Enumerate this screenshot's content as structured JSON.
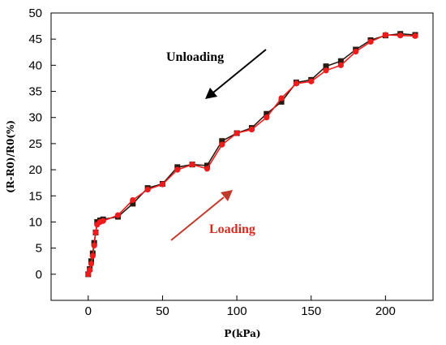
{
  "chart_data": {
    "type": "line",
    "xlabel": "P(kPa)",
    "ylabel": "(R-R0)/R0(%)",
    "xlim": [
      -25,
      232
    ],
    "ylim": [
      -5,
      50
    ],
    "x_ticks": [
      0,
      50,
      100,
      150,
      200
    ],
    "y_ticks": [
      0,
      5,
      10,
      15,
      20,
      25,
      30,
      35,
      40,
      45,
      50
    ],
    "grid": false,
    "annotations": [
      {
        "text": "Unloading",
        "color": "#000000"
      },
      {
        "text": "Loading",
        "color": "#d42a20"
      }
    ],
    "series": [
      {
        "color": "#2a1a10",
        "marker": "square",
        "points": [
          [
            0,
            0
          ],
          [
            1,
            1
          ],
          [
            2,
            2.5
          ],
          [
            3,
            4
          ],
          [
            4,
            6
          ],
          [
            5,
            8
          ],
          [
            6,
            10
          ],
          [
            8,
            10.3
          ],
          [
            10,
            10.5
          ],
          [
            20,
            11
          ],
          [
            30,
            13.5
          ],
          [
            40,
            16.5
          ],
          [
            50,
            17.3
          ],
          [
            60,
            20.5
          ],
          [
            70,
            21
          ],
          [
            80,
            20.8
          ],
          [
            90,
            25.5
          ],
          [
            100,
            27
          ],
          [
            110,
            28
          ],
          [
            120,
            30.7
          ],
          [
            130,
            33
          ],
          [
            140,
            36.7
          ],
          [
            150,
            37.2
          ],
          [
            160,
            39.8
          ],
          [
            170,
            40.8
          ],
          [
            180,
            43
          ],
          [
            190,
            44.8
          ],
          [
            200,
            45.7
          ],
          [
            210,
            46
          ],
          [
            220,
            45.8
          ]
        ]
      },
      {
        "color": "#ee1c1c",
        "marker": "circle",
        "points": [
          [
            0,
            0
          ],
          [
            1,
            0.8
          ],
          [
            2,
            2
          ],
          [
            3,
            3.5
          ],
          [
            4,
            5.5
          ],
          [
            5,
            8
          ],
          [
            6,
            9.5
          ],
          [
            8,
            10
          ],
          [
            10,
            10.2
          ],
          [
            20,
            11.3
          ],
          [
            30,
            14.2
          ],
          [
            40,
            16.2
          ],
          [
            50,
            17.2
          ],
          [
            60,
            20
          ],
          [
            70,
            21
          ],
          [
            80,
            20.2
          ],
          [
            90,
            24.8
          ],
          [
            100,
            27
          ],
          [
            110,
            27.7
          ],
          [
            120,
            30
          ],
          [
            130,
            33.7
          ],
          [
            140,
            36.5
          ],
          [
            150,
            36.9
          ],
          [
            160,
            39
          ],
          [
            170,
            40
          ],
          [
            180,
            42.6
          ],
          [
            190,
            44.5
          ],
          [
            200,
            45.8
          ],
          [
            210,
            45.7
          ],
          [
            220,
            45.6
          ]
        ]
      }
    ]
  }
}
